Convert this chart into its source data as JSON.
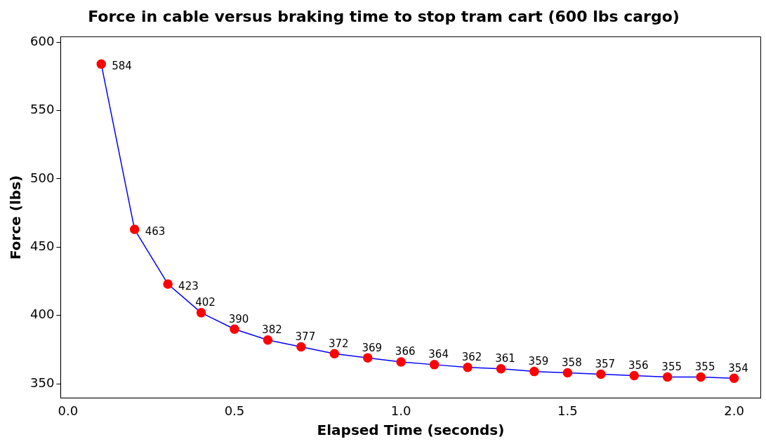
{
  "chart_data": {
    "type": "line",
    "title": "Force in cable versus braking time to stop tram cart (600 lbs cargo)",
    "xlabel": "Elapsed Time (seconds)",
    "ylabel": "Force (lbs)",
    "x": [
      0.1,
      0.2,
      0.3,
      0.4,
      0.5,
      0.6,
      0.7,
      0.8,
      0.9,
      1.0,
      1.1,
      1.2,
      1.3,
      1.4,
      1.5,
      1.6,
      1.7,
      1.8,
      1.9,
      2.0
    ],
    "series": [
      {
        "color": "#0000ff",
        "colors": [
          "#ff0000",
          "#ff0000",
          "#ff0000",
          "#ff0000",
          "#ff0000",
          "#ff0000",
          "#ff0000",
          "#ff0000",
          "#ff0000",
          "#ff0000",
          "#ff0000",
          "#ff0000",
          "#ff0000",
          "#ff0000",
          "#ff0000",
          "#ff0000",
          "#ff0000",
          "#ff0000",
          "#ff0000",
          "#ff0000"
        ],
        "values": [
          584,
          463,
          423,
          402,
          390,
          382,
          377,
          372,
          369,
          366,
          364,
          362,
          361,
          359,
          358,
          357,
          356,
          355,
          355,
          354
        ]
      }
    ],
    "xlim": [
      -0.022,
      2.08
    ],
    "xticks": [
      {
        "value": 0,
        "label": "0.0"
      },
      0.5,
      {
        "value": 1,
        "label": "1.0"
      },
      1.5,
      {
        "value": 2,
        "label": "2.0"
      }
    ],
    "ylim": [
      339.6,
      604
    ],
    "yticks": [
      350,
      400,
      450,
      500,
      550,
      600
    ],
    "marker": "circle",
    "line_style": "solid",
    "grid": false,
    "legend": false,
    "data_labels": true
  }
}
